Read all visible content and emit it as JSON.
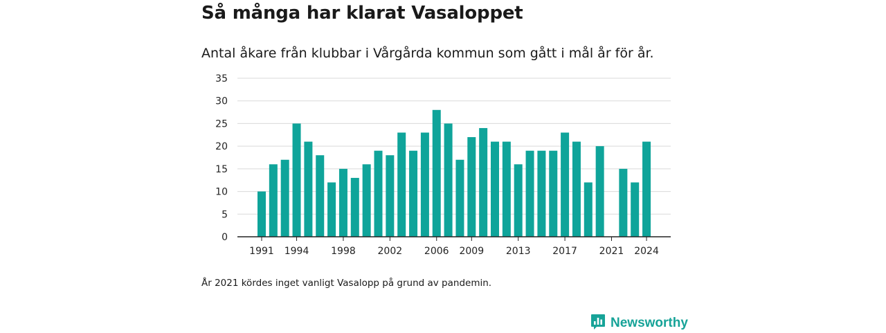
{
  "header": {
    "title": "Så många har klarat Vasaloppet",
    "subtitle": "Antal åkare från klubbar i Vårgårda kommun som gått i mål år för år."
  },
  "footer": {
    "note": "År 2021 kördes inget vanligt Vasalopp på grund av pandemin.",
    "brand": "Newsworthy",
    "brand_icon": "newsworthy-logo-icon"
  },
  "colors": {
    "bar": "#0fa49a",
    "grid": "#d9d9d9",
    "axis": "#222222",
    "brand": "#17a398"
  },
  "chart_data": {
    "type": "bar",
    "categories": [
      1991,
      1992,
      1993,
      1994,
      1995,
      1996,
      1997,
      1998,
      1999,
      2000,
      2001,
      2002,
      2003,
      2004,
      2005,
      2006,
      2007,
      2008,
      2009,
      2010,
      2011,
      2012,
      2013,
      2014,
      2015,
      2016,
      2017,
      2018,
      2019,
      2020,
      2021,
      2022,
      2023,
      2024
    ],
    "values": [
      10,
      16,
      17,
      25,
      21,
      18,
      12,
      15,
      13,
      16,
      19,
      18,
      23,
      19,
      23,
      28,
      25,
      17,
      22,
      24,
      21,
      21,
      16,
      19,
      19,
      19,
      23,
      21,
      12,
      20,
      null,
      15,
      12,
      21
    ],
    "xtick_labels": [
      "1991",
      "1994",
      "1998",
      "2002",
      "2006",
      "2009",
      "2013",
      "2017",
      "2021",
      "2024"
    ],
    "yticks": [
      0,
      5,
      10,
      15,
      20,
      25,
      30,
      35
    ],
    "ylim": [
      0,
      35
    ],
    "grid": true,
    "xlabel": "",
    "ylabel": ""
  }
}
